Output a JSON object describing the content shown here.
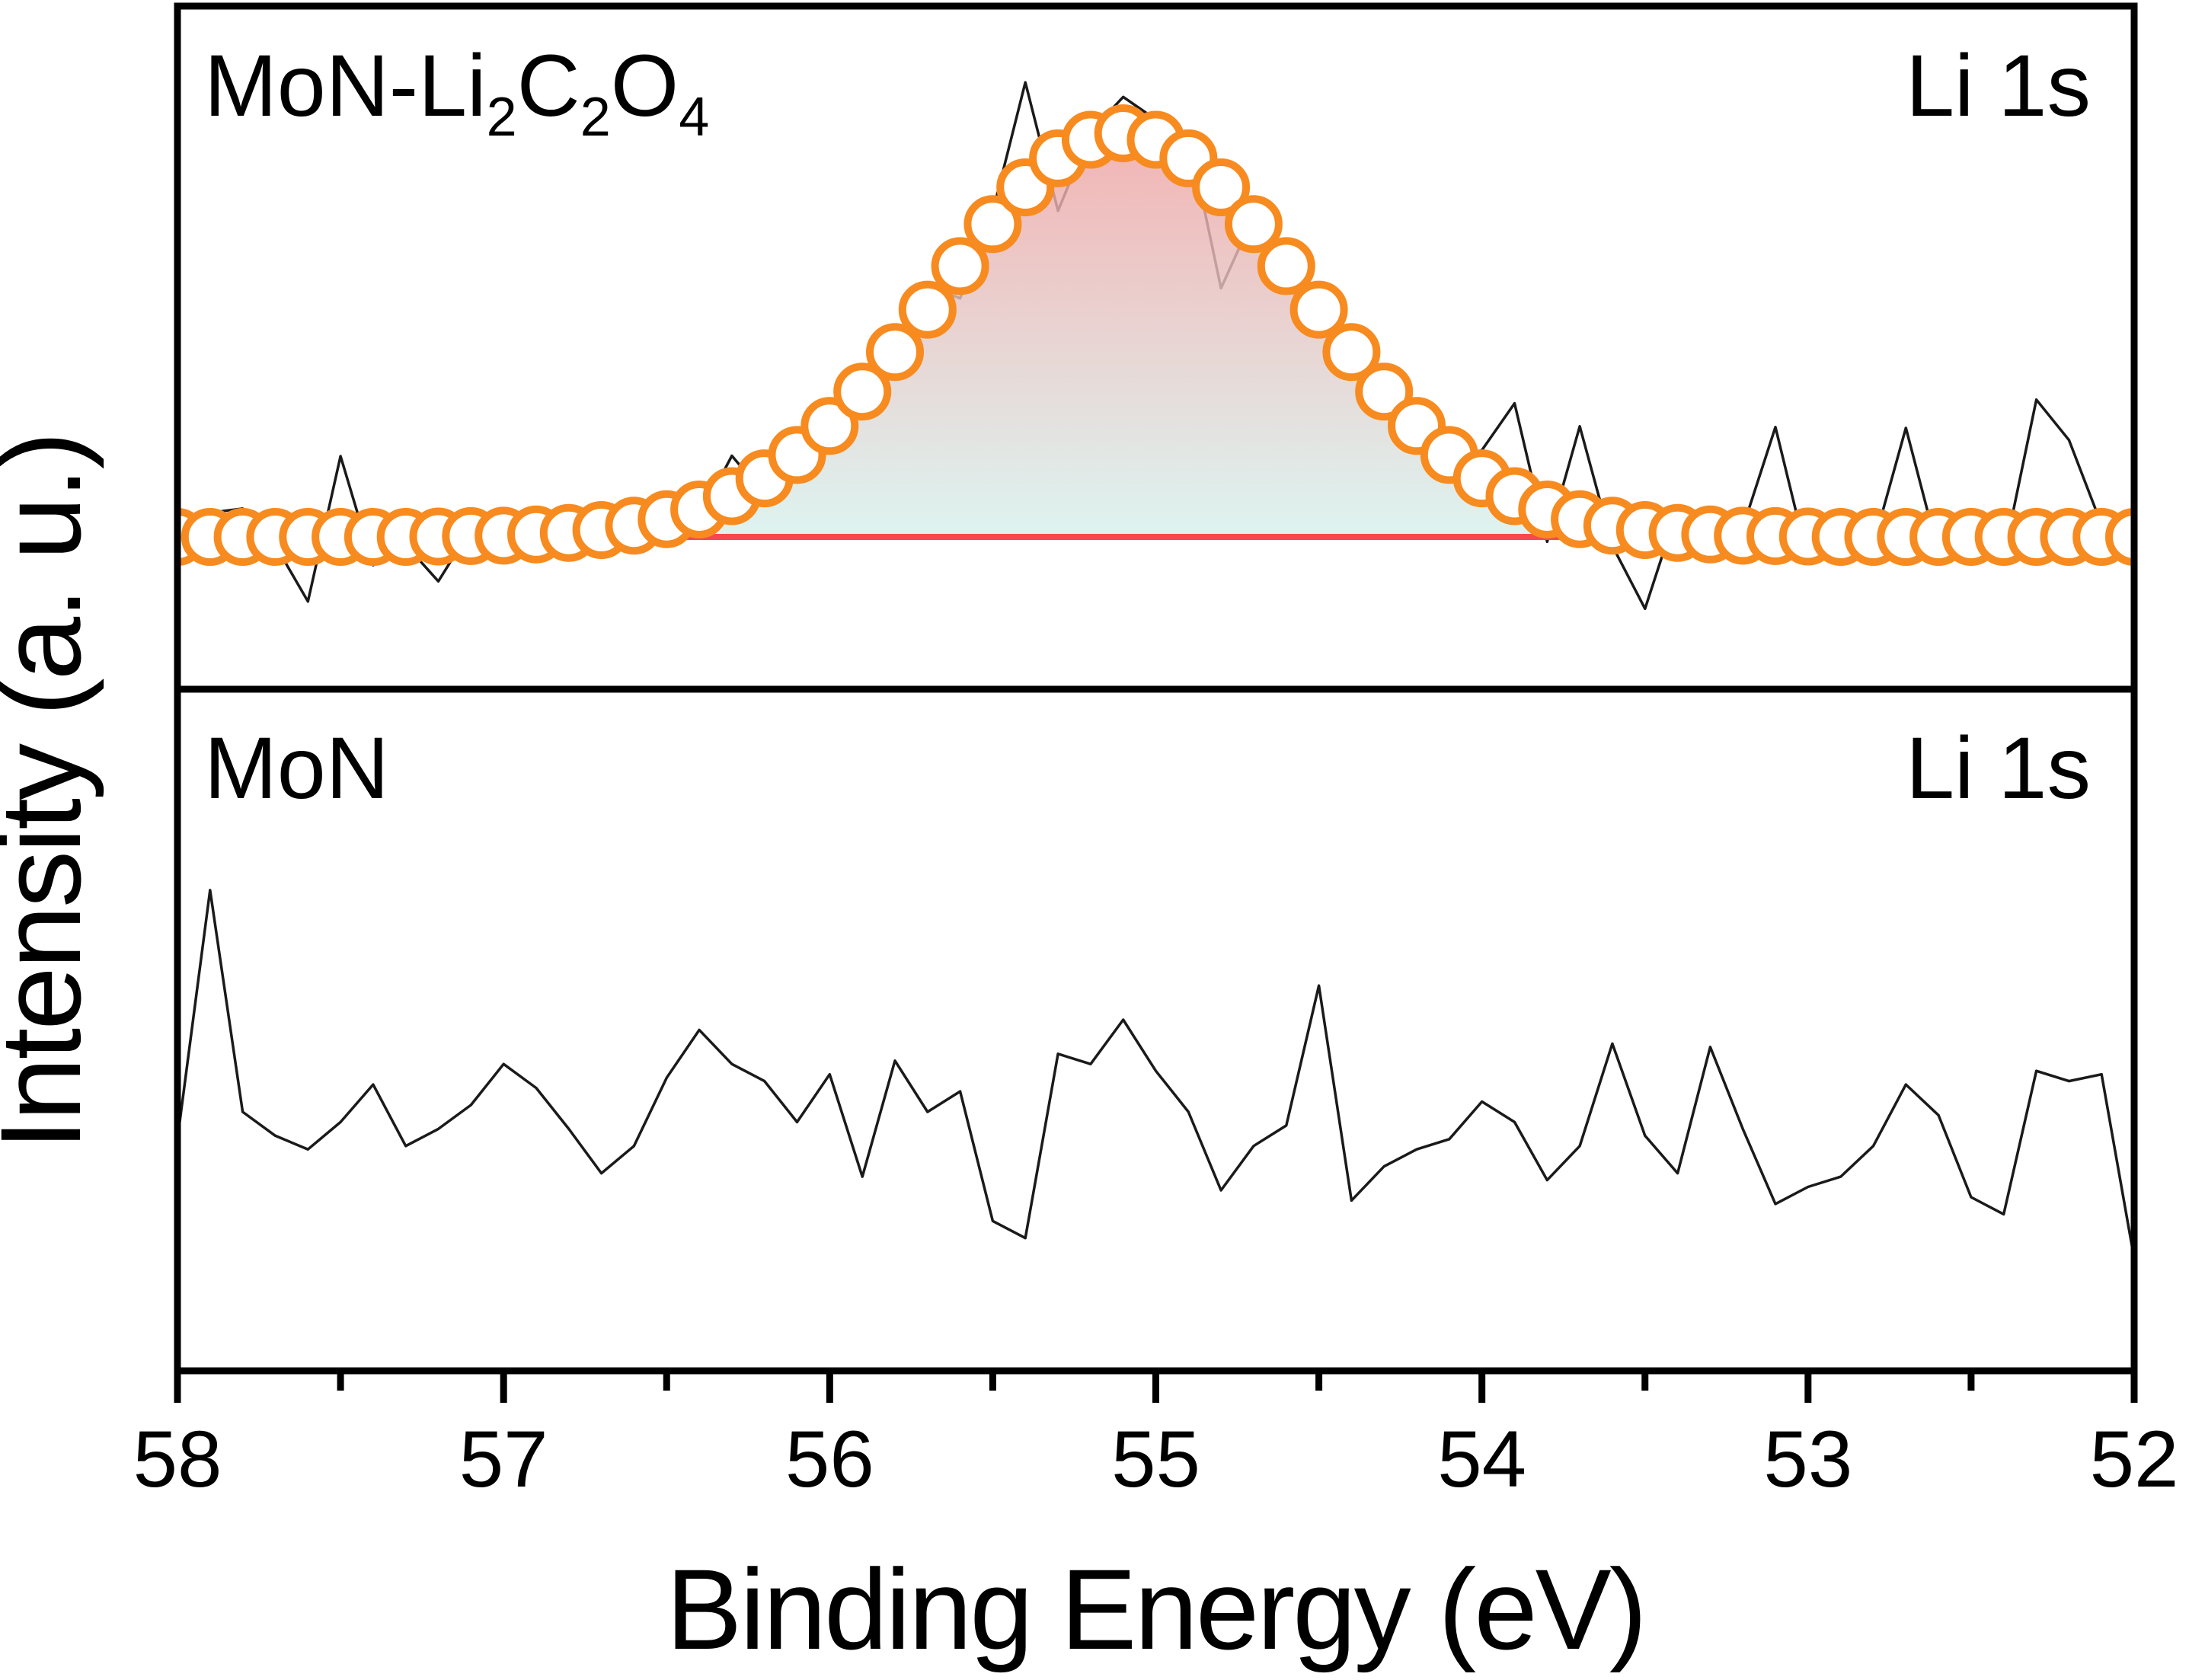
{
  "figure": {
    "xlabel": "Binding Energy (eV)",
    "ylabel": "Intensity (a. u.)",
    "x_ticks": [
      58,
      57,
      56,
      55,
      54,
      53,
      52
    ],
    "x_minor_ticks": [
      57.5,
      56.5,
      55.5,
      54.5,
      53.5,
      52.5
    ],
    "xlim": [
      58,
      52
    ],
    "x_axis_reversed": true,
    "grid": false,
    "legend": "none",
    "colors": {
      "marker_orange": "#f78b1f",
      "baseline_red": "#f4494e",
      "fill_gradient_top": "#f0a4a4",
      "fill_gradient_bottom": "#d6f2ee",
      "raw_black": "#1a1a1a"
    }
  },
  "chart_data": [
    {
      "type": "line",
      "panel": "top",
      "panel_label": "MoN-Li2C2O4",
      "panel_label_parts": [
        {
          "text": "MoN-Li"
        },
        {
          "text": "2",
          "sub": true
        },
        {
          "text": "C"
        },
        {
          "text": "2",
          "sub": true
        },
        {
          "text": "O"
        },
        {
          "text": "4",
          "sub": true
        }
      ],
      "corner_label": "Li 1s",
      "x_start": 58.0,
      "x_step": -0.1,
      "series": [
        {
          "name": "raw-spectrum",
          "type": "line",
          "color": "#1a1a1a",
          "values": [
            0.01,
            0.06,
            0.07,
            -0.02,
            -0.16,
            0.2,
            -0.07,
            -0.02,
            -0.11,
            0.02,
            -0.007,
            0.056,
            -0.02,
            0.037,
            -0.022,
            0.074,
            0.048,
            0.201,
            0.105,
            0.223,
            0.215,
            0.4,
            0.438,
            0.623,
            0.591,
            0.805,
            1.126,
            0.808,
            1.004,
            1.09,
            1.034,
            0.998,
            0.616,
            0.795,
            0.621,
            0.543,
            0.498,
            0.3,
            0.305,
            0.183,
            0.215,
            0.331,
            -0.012,
            0.274,
            -0.022,
            -0.178,
            0.07,
            -0.024,
            0.023,
            0.272,
            -0.059,
            0.03,
            -0.02,
            0.27,
            -0.04,
            0.02,
            -0.05,
            0.34,
            0.24,
            0.03,
            -0.01
          ]
        },
        {
          "name": "fit-envelope",
          "type": "scatter",
          "marker": "open-circle",
          "color": "#f78b1f",
          "peak_params": {
            "center_eV": 55.1,
            "sigma_eV": 0.56,
            "amplitude": 1.0
          },
          "values": [
            0.0,
            0.0,
            0.0,
            0.0,
            0.0,
            0.0,
            0.0,
            0.0,
            0.001,
            0.002,
            0.003,
            0.006,
            0.01,
            0.017,
            0.028,
            0.044,
            0.068,
            0.101,
            0.145,
            0.203,
            0.275,
            0.36,
            0.458,
            0.563,
            0.671,
            0.775,
            0.866,
            0.938,
            0.984,
            1.0,
            0.984,
            0.938,
            0.866,
            0.775,
            0.671,
            0.563,
            0.458,
            0.36,
            0.275,
            0.203,
            0.145,
            0.101,
            0.068,
            0.044,
            0.028,
            0.017,
            0.01,
            0.006,
            0.003,
            0.002,
            0.001,
            0.0,
            0.0,
            0.0,
            0.0,
            0.0,
            0.0,
            0.0,
            0.0,
            0.0,
            0.0
          ]
        },
        {
          "name": "baseline",
          "type": "line",
          "color": "#f4494e",
          "x_range": [
            57.45,
            53.5
          ],
          "value": 0
        },
        {
          "name": "peak-fill",
          "type": "area",
          "between": [
            "fit-envelope",
            "baseline"
          ],
          "x_range": [
            57.45,
            53.5
          ],
          "gradient": [
            "#f0a4a4",
            "#d6f2ee"
          ]
        }
      ]
    },
    {
      "type": "line",
      "panel": "bottom",
      "panel_label": "MoN",
      "panel_label_parts": [
        {
          "text": "MoN"
        }
      ],
      "corner_label": "Li 1s",
      "x_start": 58.0,
      "x_step": -0.1,
      "series": [
        {
          "name": "raw-spectrum",
          "type": "line",
          "color": "#1a1a1a",
          "values": [
            -0.1,
            0.63,
            -0.02,
            -0.09,
            -0.13,
            -0.05,
            0.06,
            -0.12,
            -0.07,
            0.0,
            0.12,
            0.05,
            -0.07,
            -0.2,
            -0.12,
            0.08,
            0.22,
            0.12,
            0.07,
            -0.05,
            0.09,
            -0.21,
            0.13,
            -0.02,
            0.04,
            -0.34,
            -0.39,
            0.15,
            0.12,
            0.25,
            0.1,
            -0.02,
            -0.25,
            -0.12,
            -0.06,
            0.35,
            -0.28,
            -0.18,
            -0.13,
            -0.1,
            0.01,
            -0.05,
            -0.22,
            -0.12,
            0.18,
            -0.09,
            -0.2,
            0.17,
            -0.07,
            -0.29,
            -0.24,
            -0.21,
            -0.12,
            0.06,
            -0.03,
            -0.27,
            -0.32,
            0.1,
            0.07,
            0.09,
            -0.45
          ]
        }
      ]
    }
  ]
}
